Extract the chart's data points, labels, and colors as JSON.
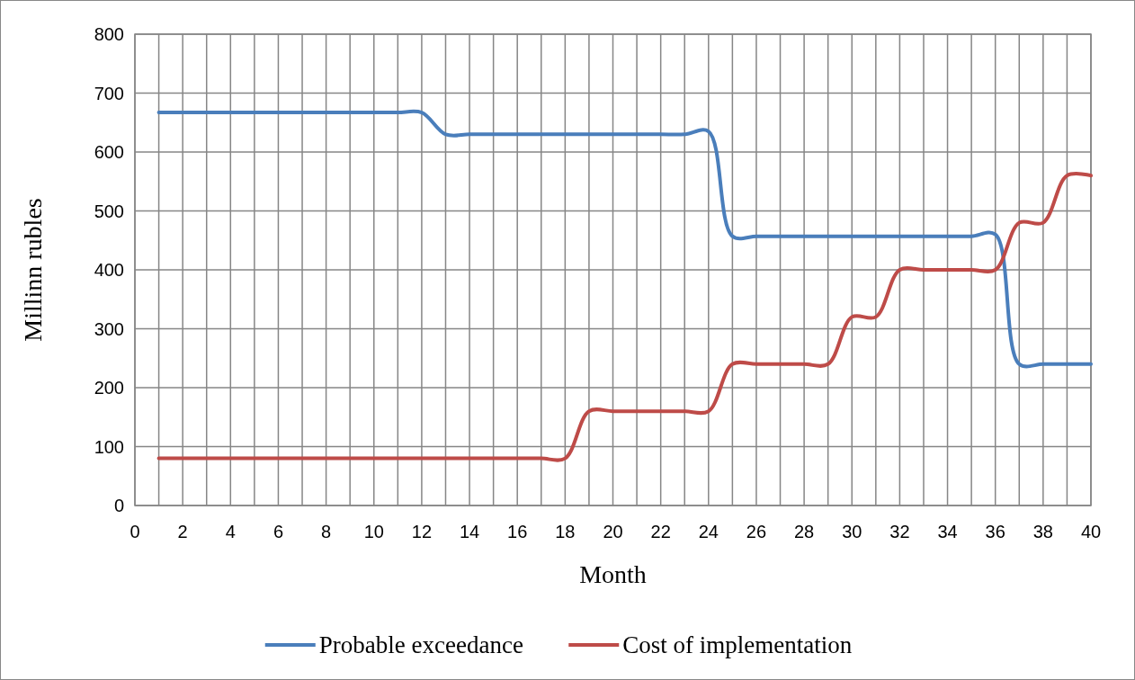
{
  "chart_data": {
    "type": "line",
    "xlabel": "Month",
    "ylabel": "Millinn rubles",
    "x": [
      1,
      2,
      3,
      4,
      5,
      6,
      7,
      8,
      9,
      10,
      11,
      12,
      13,
      14,
      15,
      16,
      17,
      18,
      19,
      20,
      21,
      22,
      23,
      24,
      25,
      26,
      27,
      28,
      29,
      30,
      31,
      32,
      33,
      34,
      35,
      36,
      37,
      38,
      39,
      40
    ],
    "series": [
      {
        "name": "Probable exceedance",
        "color": "#4a7ebb",
        "values": [
          667,
          667,
          667,
          667,
          667,
          667,
          667,
          667,
          667,
          667,
          667,
          667,
          630,
          630,
          630,
          630,
          630,
          630,
          630,
          630,
          630,
          630,
          630,
          635,
          457,
          457,
          457,
          457,
          457,
          457,
          457,
          457,
          457,
          457,
          457,
          460,
          240,
          240,
          240,
          240
        ]
      },
      {
        "name": "Cost of implementation",
        "color": "#be4b48",
        "values": [
          80,
          80,
          80,
          80,
          80,
          80,
          80,
          80,
          80,
          80,
          80,
          80,
          80,
          80,
          80,
          80,
          80,
          80,
          160,
          160,
          160,
          160,
          160,
          160,
          240,
          240,
          240,
          240,
          240,
          320,
          320,
          400,
          400,
          400,
          400,
          400,
          480,
          480,
          560,
          560
        ]
      }
    ],
    "xlim": [
      0,
      40
    ],
    "xticks": [
      0,
      {
        "value": 1,
        "label": null
      },
      2,
      {
        "value": 3,
        "label": null
      },
      4,
      {
        "value": 5,
        "label": null
      },
      6,
      {
        "value": 7,
        "label": null
      },
      8,
      {
        "value": 9,
        "label": null
      },
      10,
      {
        "value": 11,
        "label": null
      },
      12,
      {
        "value": 13,
        "label": null
      },
      14,
      {
        "value": 15,
        "label": null
      },
      16,
      {
        "value": 17,
        "label": null
      },
      18,
      {
        "value": 19,
        "label": null
      },
      20,
      {
        "value": 21,
        "label": null
      },
      22,
      {
        "value": 23,
        "label": null
      },
      24,
      {
        "value": 25,
        "label": null
      },
      26,
      {
        "value": 27,
        "label": null
      },
      28,
      {
        "value": 29,
        "label": null
      },
      30,
      {
        "value": 31,
        "label": null
      },
      32,
      {
        "value": 33,
        "label": null
      },
      34,
      {
        "value": 35,
        "label": null
      },
      36,
      {
        "value": 37,
        "label": null
      },
      38,
      {
        "value": 39,
        "label": null
      },
      40
    ],
    "ylim": [
      0,
      800
    ],
    "yticks": [
      0,
      100,
      200,
      300,
      400,
      500,
      600,
      700,
      800
    ],
    "grid": true,
    "legend": "bottom",
    "marker": "none",
    "line_style": "solid"
  }
}
